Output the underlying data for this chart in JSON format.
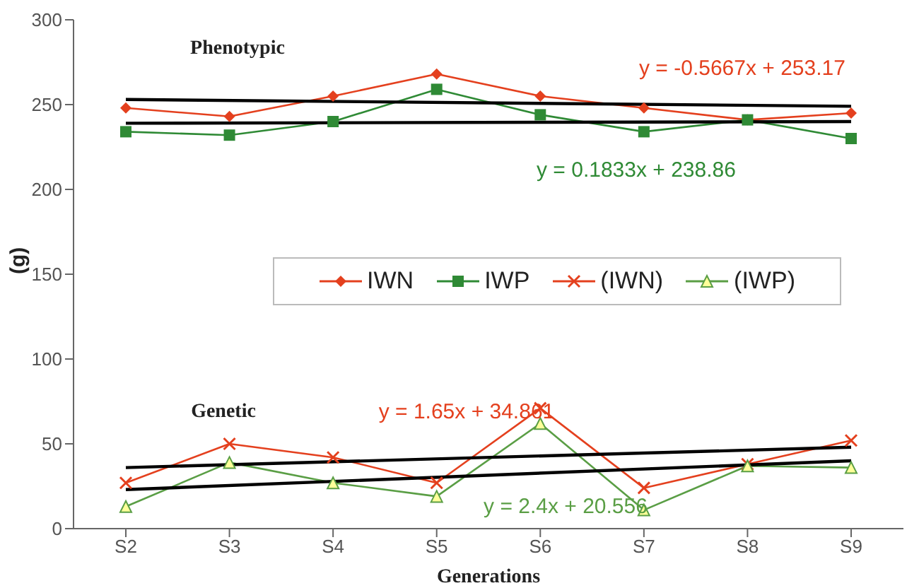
{
  "chart_data": {
    "type": "line",
    "xlabel": "Generations",
    "ylabel": "(g)",
    "categories": [
      "S2",
      "S3",
      "S4",
      "S5",
      "S6",
      "S7",
      "S8",
      "S9"
    ],
    "series": [
      {
        "name": "IWN",
        "color": "#e4401e",
        "marker": "diamond",
        "values": [
          248,
          243,
          255,
          268,
          255,
          248,
          241,
          245
        ]
      },
      {
        "name": "IWP",
        "color": "#2f8a35",
        "marker": "square",
        "values": [
          234,
          232,
          240,
          259,
          244,
          234,
          241,
          230
        ]
      },
      {
        "name": "(IWN)",
        "color": "#e4401e",
        "marker": "cross",
        "values": [
          27,
          50,
          42,
          27,
          71,
          24,
          38,
          52
        ]
      },
      {
        "name": "(IWP)",
        "color": "#5a9e45",
        "marker": "triangle",
        "values": [
          13,
          39,
          27,
          19,
          62,
          11,
          37,
          36
        ]
      },
      {
        "type": "line",
        "color": "#000000",
        "marker": "none",
        "x": [
          "S2",
          "S9"
        ],
        "values": [
          253,
          249
        ]
      },
      {
        "type": "line",
        "color": "#000000",
        "marker": "none",
        "x": [
          "S2",
          "S9"
        ],
        "values": [
          239,
          240
        ]
      },
      {
        "type": "line",
        "color": "#000000",
        "marker": "none",
        "x": [
          "S2",
          "S9"
        ],
        "values": [
          36,
          48
        ]
      },
      {
        "type": "line",
        "color": "#000000",
        "marker": "none",
        "x": [
          "S2",
          "S9"
        ],
        "values": [
          23,
          40
        ]
      }
    ],
    "ylim": [
      0,
      300
    ],
    "yticks": [
      0,
      50,
      100,
      150,
      200,
      250,
      300
    ],
    "grid": false,
    "legend": "center",
    "annotations": [
      "Phenotypic",
      "Genetic",
      "y = -0.5667x + 253.17",
      "y = 0.1833x + 238.86",
      "y = 1.65x + 34.861",
      "y = 2.4x + 20.556"
    ]
  }
}
